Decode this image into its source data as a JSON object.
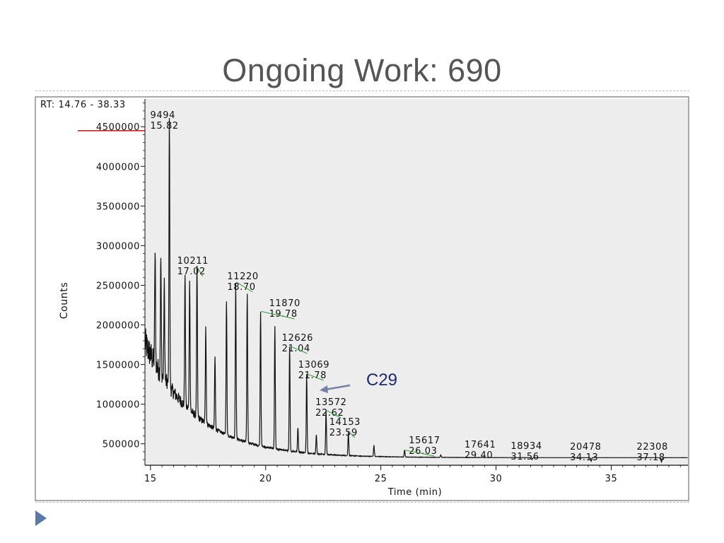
{
  "slide": {
    "title": "Ongoing Work: 690",
    "bullet_icon": "triangle-bullet-icon"
  },
  "chart_data": {
    "type": "line",
    "title": "RT: 14.76 - 38.33",
    "xlabel": "Time (min)",
    "ylabel": "Counts",
    "xlim": [
      14.76,
      38.33
    ],
    "ylim": [
      230000,
      4850000
    ],
    "x_ticks": [
      15,
      20,
      25,
      30,
      35
    ],
    "y_ticks": [
      500000,
      1000000,
      1500000,
      2000000,
      2500000,
      3000000,
      3500000,
      4000000,
      4500000
    ],
    "grid": false,
    "plot_background": "#ededed",
    "line_color": "#111111",
    "peaks": [
      {
        "scan": "9494",
        "rt": "15.82",
        "x": 15.82,
        "y": 4620000
      },
      {
        "scan": "10211",
        "rt": "17.02",
        "x": 17.02,
        "y": 2720000
      },
      {
        "scan": "11220",
        "rt": "18.70",
        "x": 18.7,
        "y": 2540000
      },
      {
        "scan": "11870",
        "rt": "19.78",
        "x": 19.78,
        "y": 2170000
      },
      {
        "scan": "12626",
        "rt": "21.04",
        "x": 21.04,
        "y": 1730000
      },
      {
        "scan": "13069",
        "rt": "21.78",
        "x": 21.78,
        "y": 1380000
      },
      {
        "scan": "13572",
        "rt": "22.62",
        "x": 22.62,
        "y": 920000
      },
      {
        "scan": "14153",
        "rt": "23.59",
        "x": 23.59,
        "y": 650000
      },
      {
        "scan": "15617",
        "rt": "26.03",
        "x": 26.03,
        "y": 420000
      },
      {
        "scan": "17641",
        "rt": "29.40",
        "x": 29.4,
        "y": 330000
      },
      {
        "scan": "18934",
        "rt": "31.56",
        "x": 31.56,
        "y": 300000
      },
      {
        "scan": "20478",
        "rt": "34.13",
        "x": 34.13,
        "y": 280000
      },
      {
        "scan": "22308",
        "rt": "37.18",
        "x": 37.18,
        "y": 270000
      }
    ],
    "extra_peaks": [
      {
        "x": 15.2,
        "y": 2900000
      },
      {
        "x": 15.45,
        "y": 2850000
      },
      {
        "x": 15.6,
        "y": 2500000
      },
      {
        "x": 16.5,
        "y": 2650000
      },
      {
        "x": 16.7,
        "y": 2600000
      },
      {
        "x": 17.4,
        "y": 2000000
      },
      {
        "x": 17.8,
        "y": 1600000
      },
      {
        "x": 18.3,
        "y": 2300000
      },
      {
        "x": 19.2,
        "y": 2400000
      },
      {
        "x": 20.4,
        "y": 1980000
      },
      {
        "x": 21.4,
        "y": 700000
      },
      {
        "x": 22.2,
        "y": 620000
      },
      {
        "x": 24.7,
        "y": 480000
      },
      {
        "x": 27.6,
        "y": 360000
      }
    ],
    "annotations": [
      {
        "text": "C29",
        "color": "#1f2a6b",
        "arrow_color": "#7480a6"
      }
    ],
    "marker_line": {
      "y": 4450000,
      "color": "#d62020"
    }
  }
}
